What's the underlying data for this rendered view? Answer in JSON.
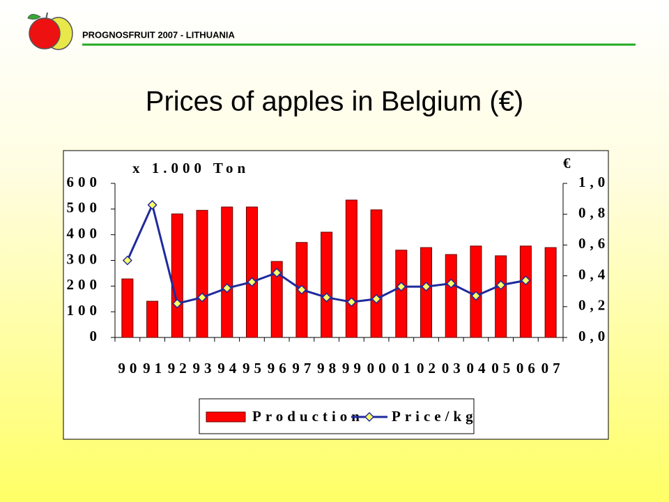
{
  "header": {
    "title": "PROGNOSFRUIT 2007 - LITHUANIA"
  },
  "chart_data": {
    "type": "bar",
    "title": "Prices of apples in Belgium (€)",
    "y_label": "x 1.000 Ton",
    "y2_label": "€",
    "categories": [
      "90",
      "91",
      "92",
      "93",
      "94",
      "95",
      "96",
      "97",
      "98",
      "99",
      "00",
      "01",
      "02",
      "03",
      "04",
      "05",
      "06",
      "07"
    ],
    "series": [
      {
        "name": "Production",
        "type": "bar",
        "color": "#ff0000",
        "values": [
          228,
          141,
          481,
          495,
          508,
          508,
          296,
          370,
          410,
          535,
          497,
          340,
          350,
          323,
          356,
          318,
          356,
          350
        ]
      },
      {
        "name": "Price/kg",
        "type": "line",
        "axis": "y2",
        "color": "#1f2a9c",
        "marker_color": "#ffff66",
        "values": [
          0.5,
          0.86,
          0.22,
          0.26,
          0.32,
          0.36,
          0.42,
          0.31,
          0.26,
          0.23,
          0.25,
          0.33,
          0.33,
          0.35,
          0.27,
          0.34,
          0.37,
          null
        ]
      }
    ],
    "ylim": [
      0,
      600
    ],
    "yticks": [
      0,
      100,
      200,
      300,
      400,
      500,
      600
    ],
    "y2lim": [
      0,
      1
    ],
    "y2ticks": [
      {
        "value": 0,
        "label": "0,0"
      },
      {
        "value": 0.2,
        "label": "0,2"
      },
      {
        "value": 0.4,
        "label": "0,4"
      },
      {
        "value": 0.6,
        "label": "0,6"
      },
      {
        "value": 0.8,
        "label": "0,8"
      },
      {
        "value": 1,
        "label": "1,0"
      }
    ]
  }
}
